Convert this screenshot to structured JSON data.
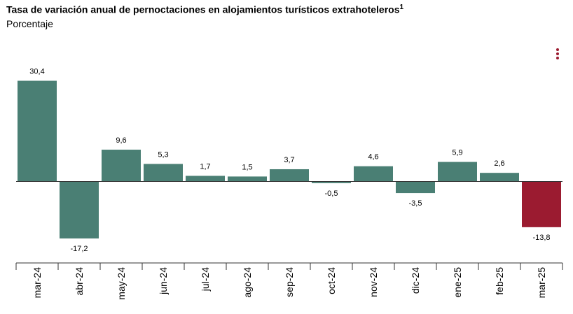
{
  "header": {
    "title": "Tasa de variación anual de pernoctaciones en alojamientos turísticos extrahoteleros",
    "title_sup": "1",
    "subtitle": "Porcentaje"
  },
  "menu_icon": "vertical-dots-icon",
  "colors": {
    "positive": "#4a7f74",
    "highlight": "#9b1b30"
  },
  "chart_data": {
    "type": "bar",
    "title": "Tasa de variación anual de pernoctaciones en alojamientos turísticos extrahoteleros",
    "ylabel": "Porcentaje",
    "categories": [
      "mar-24",
      "abr-24",
      "may-24",
      "jun-24",
      "jul-24",
      "ago-24",
      "sep-24",
      "oct-24",
      "nov-24",
      "dic-24",
      "ene-25",
      "feb-25",
      "mar-25"
    ],
    "values": [
      30.4,
      -17.2,
      9.6,
      5.3,
      1.7,
      1.5,
      3.7,
      -0.5,
      4.6,
      -3.5,
      5.9,
      2.6,
      -13.8
    ],
    "data_labels": [
      "30,4",
      "-17,2",
      "9,6",
      "5,3",
      "1,7",
      "1,5",
      "3,7",
      "-0,5",
      "4,6",
      "-3,5",
      "5,9",
      "2,6",
      "-13,8"
    ],
    "highlight_index": 12,
    "grid": false,
    "legend": "none"
  }
}
